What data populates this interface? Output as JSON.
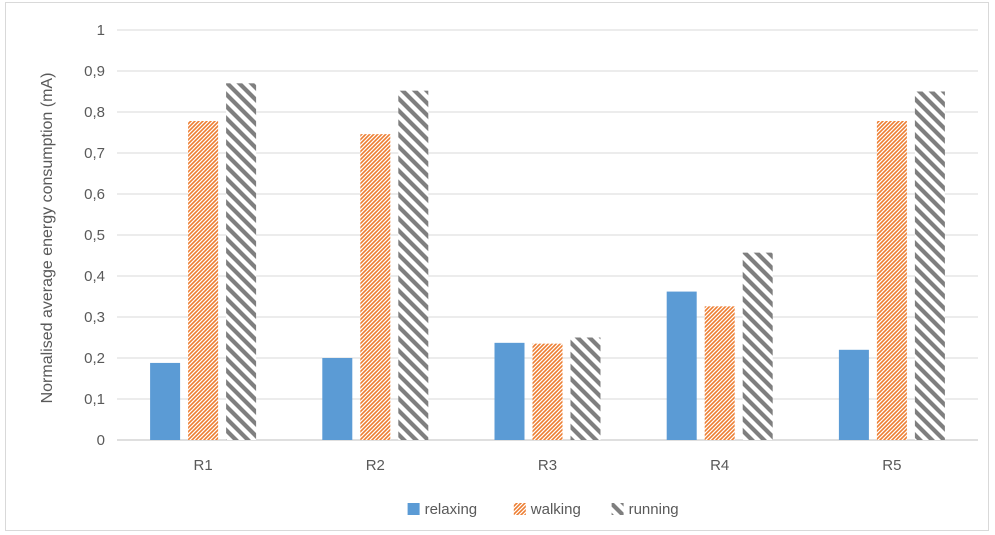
{
  "chart_data": {
    "type": "bar",
    "title": "",
    "xlabel": "",
    "ylabel": "Normalised average energy consumption (mA)",
    "ylim": [
      0,
      1
    ],
    "yticks": [
      "0",
      "0,1",
      "0,2",
      "0,3",
      "0,4",
      "0,5",
      "0,6",
      "0,7",
      "0,8",
      "0,9",
      "1"
    ],
    "categories": [
      "R1",
      "R2",
      "R3",
      "R4",
      "R5"
    ],
    "grid": true,
    "legend_position": "bottom",
    "series": [
      {
        "name": "relaxing",
        "values": [
          0.188,
          0.2,
          0.237,
          0.362,
          0.22
        ],
        "color": "#5b9bd5",
        "pattern": "solid"
      },
      {
        "name": "walking",
        "values": [
          0.778,
          0.746,
          0.235,
          0.326,
          0.778
        ],
        "color": "#ed7d31",
        "pattern": "light-downward-diagonal"
      },
      {
        "name": "running",
        "values": [
          0.87,
          0.852,
          0.25,
          0.457,
          0.85
        ],
        "color": "#7f7f7f",
        "pattern": "wide-upward-diagonal"
      }
    ]
  }
}
